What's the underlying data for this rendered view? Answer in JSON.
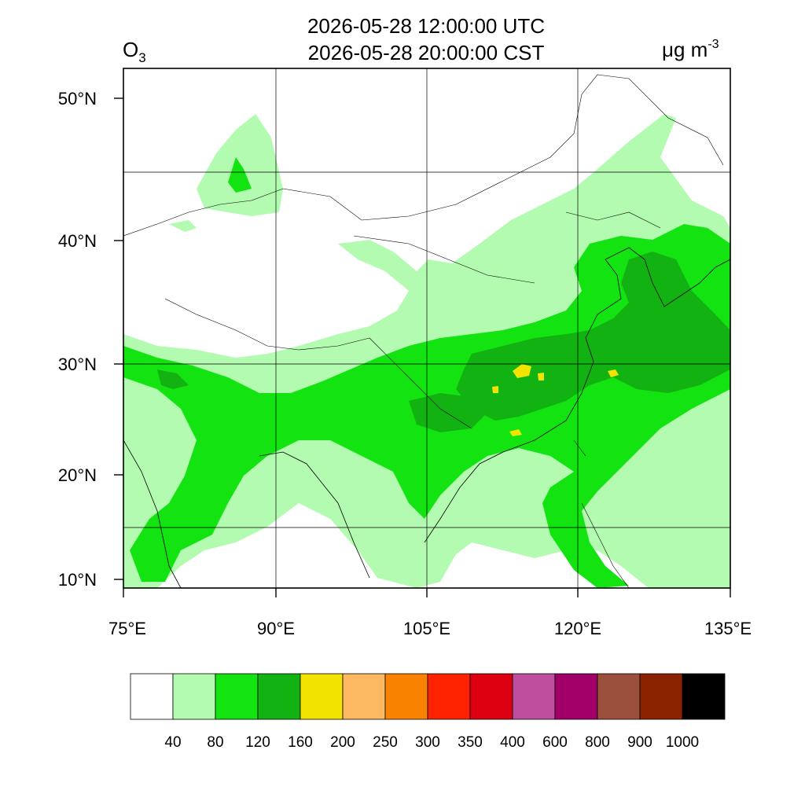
{
  "title": {
    "line1": "2026-05-28 12:00:00 UTC",
    "line2": "2026-05-28 20:00:00 CST"
  },
  "variable": {
    "base": "O",
    "sub": "3"
  },
  "units": {
    "text": "μg m",
    "sup": "-3"
  },
  "axes": {
    "lon_labels": [
      "75°E",
      "90°E",
      "105°E",
      "120°E",
      "135°E"
    ],
    "lat_labels": [
      "10°N",
      "20°N",
      "30°N",
      "40°N",
      "50°N"
    ]
  },
  "legend": {
    "colors": [
      "#ffffff",
      "#b3fbb0",
      "#13e310",
      "#12b212",
      "#f3e300",
      "#fdb961",
      "#f98300",
      "#fe2300",
      "#de0010",
      "#be4f9e",
      "#a00067",
      "#9b503d",
      "#8b2300",
      "#000000"
    ],
    "labels": [
      "40",
      "80",
      "120",
      "160",
      "200",
      "250",
      "300",
      "350",
      "400",
      "600",
      "800",
      "900",
      "1000"
    ]
  },
  "field_colors": {
    "light": "#b3fbb0",
    "mid": "#13e310",
    "dark": "#12b212",
    "high": "#f3e300"
  }
}
